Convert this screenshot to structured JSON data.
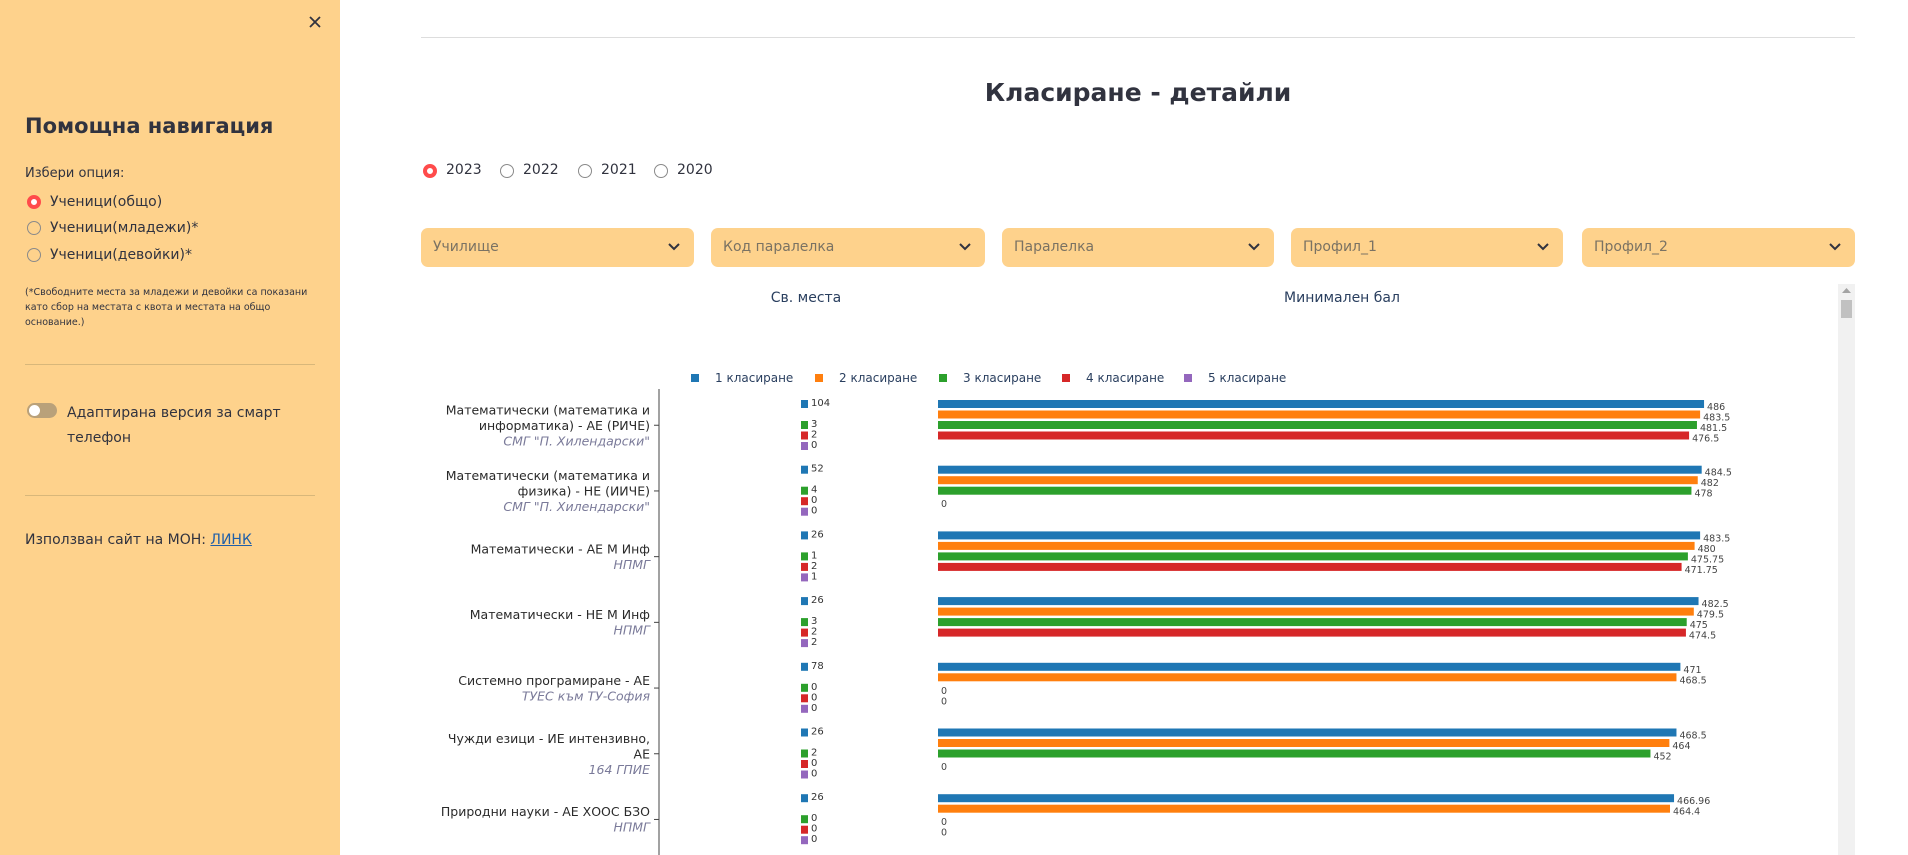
{
  "sidebar": {
    "title": "Помощна навигация",
    "option_label": "Избери опция:",
    "options": [
      "Ученици(общо)",
      "Ученици(младежи)*",
      "Ученици(девойки)*"
    ],
    "note": "(*Свободните места за младежи и девойки са показани като сбор на местата с квота и местата на общо основание.)",
    "toggle_label": "Адаптирана версия за смарт телефон",
    "source_text": "Използван сайт на МОН:",
    "source_link": "ЛИНК"
  },
  "main": {
    "title": "Класиране - детайли",
    "years": [
      "2023",
      "2022",
      "2021",
      "2020"
    ],
    "filters": [
      "Училище",
      "Код паралелка",
      "Паралелка",
      "Профил_1",
      "Профил_2"
    ]
  },
  "chart_data": [
    {
      "type": "bar",
      "title": "Св. места",
      "categories": [
        [
          "Математически (математика и",
          "информатика) - АЕ (РИЧЕ)",
          "СМГ \"П. Хилендарски\""
        ],
        [
          "Математически (математика и",
          "физика) - НЕ (ИИЧЕ)",
          "СМГ \"П. Хилендарски\""
        ],
        [
          "Математически - АЕ М Инф",
          "НПМГ"
        ],
        [
          "Математически - НЕ М Инф",
          "НПМГ"
        ],
        [
          "Системно програмиране - АЕ",
          "ТУЕС към ТУ-София"
        ],
        [
          "Чужди езици - ИЕ интензивно,",
          "АЕ",
          "164 ГПИЕ"
        ],
        [
          "Природни науки - АЕ ХООС БЗО",
          "НПМГ"
        ]
      ],
      "series": [
        {
          "name": "1 класиране",
          "color": "#1f77b4",
          "values": [
            104,
            52,
            26,
            26,
            78,
            26,
            26
          ]
        },
        {
          "name": "2 класиране",
          "color": "#ff7f0e",
          "values": [
            null,
            null,
            null,
            null,
            null,
            null,
            null
          ]
        },
        {
          "name": "3 класиране",
          "color": "#2ca02c",
          "values": [
            3,
            4,
            1,
            3,
            0,
            2,
            0
          ]
        },
        {
          "name": "4 класиране",
          "color": "#d62728",
          "values": [
            2,
            0,
            2,
            2,
            0,
            0,
            0
          ]
        },
        {
          "name": "5 класиране",
          "color": "#9467bd",
          "values": [
            0,
            0,
            1,
            2,
            0,
            0,
            0
          ]
        }
      ]
    },
    {
      "type": "bar",
      "title": "Минимален бал",
      "xlim": [
        0,
        505
      ],
      "series": [
        {
          "values": [
            486,
            484.5,
            483.5,
            482.5,
            471,
            468.5,
            466.96
          ]
        },
        {
          "values": [
            483.5,
            482,
            480,
            479.5,
            468.5,
            464,
            464.4
          ]
        },
        {
          "values": [
            481.5,
            478,
            475.75,
            475,
            0,
            452,
            0
          ]
        },
        {
          "values": [
            476.5,
            0,
            471.75,
            474.5,
            0,
            0,
            0
          ]
        },
        {
          "values": [
            null,
            null,
            null,
            null,
            null,
            null,
            null
          ]
        }
      ]
    }
  ]
}
